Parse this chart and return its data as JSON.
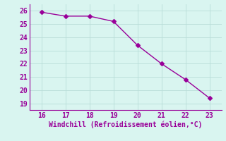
{
  "x": [
    16,
    17,
    18,
    19,
    20,
    21,
    22,
    23
  ],
  "y": [
    25.9,
    25.6,
    25.6,
    25.2,
    23.4,
    22.0,
    20.8,
    19.4
  ],
  "line_color": "#990099",
  "marker": "D",
  "marker_size": 3,
  "xlabel": "Windchill (Refroidissement éolien,°C)",
  "xlabel_color": "#990099",
  "xlabel_fontsize": 7,
  "xlim": [
    15.5,
    23.5
  ],
  "ylim": [
    18.5,
    26.5
  ],
  "xticks": [
    16,
    17,
    18,
    19,
    20,
    21,
    22,
    23
  ],
  "yticks": [
    19,
    20,
    21,
    22,
    23,
    24,
    25,
    26
  ],
  "tick_fontsize": 7,
  "tick_color": "#990099",
  "background_color": "#d9f5f0",
  "grid_color": "#b8ddd8",
  "line_width": 1.0
}
